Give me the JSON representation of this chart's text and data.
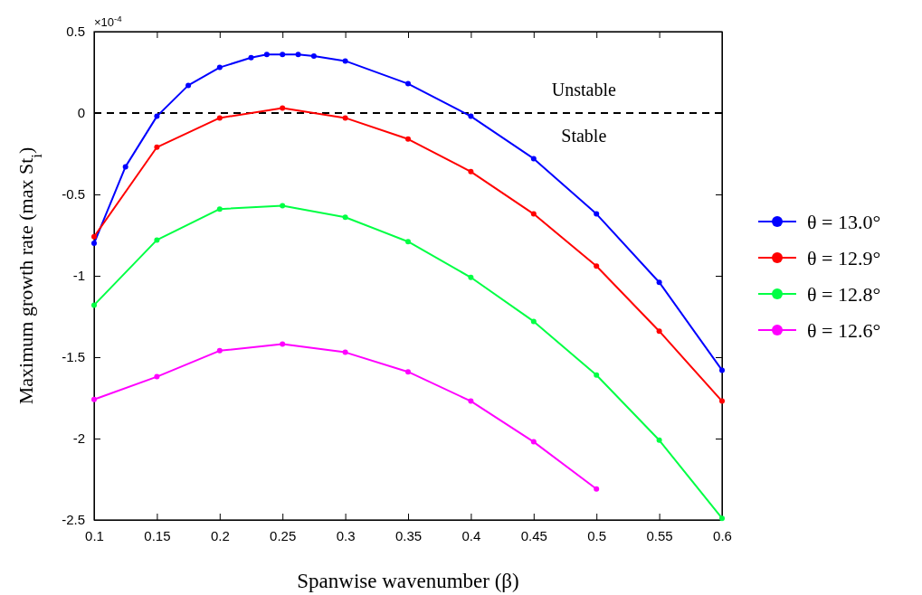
{
  "chart_data": {
    "type": "line",
    "xlabel": "Spanwise wavenumber (β)",
    "ylabel": "Maximum growth rate (max St$_{i}$)",
    "xlim": [
      0.1,
      0.6
    ],
    "xticks": [
      0.1,
      0.15,
      0.2,
      0.25,
      0.3,
      0.35,
      0.4,
      0.45,
      0.5,
      0.55,
      0.6
    ],
    "ylim": [
      -2.5,
      0.5
    ],
    "yticks": [
      -2.5,
      -2,
      -1.5,
      -1,
      -0.5,
      0,
      0.5
    ],
    "marker": "circle",
    "line_style": "solid",
    "legend": "right",
    "grid": false,
    "ref_lines": [
      {
        "axis": "y",
        "value": 0,
        "line_style": "dashed",
        "color": "#000000"
      }
    ],
    "annotations": [
      "×10$^{-4}$",
      "Unstable",
      "Stable"
    ],
    "series": [
      {
        "name": "θ = 13.0°",
        "color": "#0000ff",
        "x": [
          0.1,
          0.125,
          0.15,
          0.175,
          0.2,
          0.225,
          0.2375,
          0.25,
          0.2625,
          0.275,
          0.3,
          0.35,
          0.4,
          0.45,
          0.5,
          0.55,
          0.6
        ],
        "values": [
          -0.8,
          -0.33,
          -0.02,
          0.17,
          0.28,
          0.34,
          0.36,
          0.36,
          0.36,
          0.35,
          0.32,
          0.18,
          -0.02,
          -0.28,
          -0.62,
          -1.04,
          -1.58
        ]
      },
      {
        "name": "θ = 12.9°",
        "color": "#ff0000",
        "x": [
          0.1,
          0.15,
          0.2,
          0.25,
          0.3,
          0.35,
          0.4,
          0.45,
          0.5,
          0.55,
          0.6
        ],
        "values": [
          -0.76,
          -0.21,
          -0.03,
          0.03,
          -0.03,
          -0.16,
          -0.36,
          -0.62,
          -0.94,
          -1.34,
          -1.77
        ]
      },
      {
        "name": "θ = 12.8°",
        "color": "#00ff44",
        "x": [
          0.1,
          0.15,
          0.2,
          0.25,
          0.3,
          0.35,
          0.4,
          0.45,
          0.5,
          0.55,
          0.6
        ],
        "values": [
          -1.18,
          -0.78,
          -0.59,
          -0.57,
          -0.64,
          -0.79,
          -1.01,
          -1.28,
          -1.61,
          -2.01,
          -2.49
        ]
      },
      {
        "name": "θ = 12.6°",
        "color": "#ff00ff",
        "x": [
          0.1,
          0.15,
          0.2,
          0.25,
          0.3,
          0.35,
          0.4,
          0.45,
          0.5
        ],
        "values": [
          -1.76,
          -1.62,
          -1.46,
          -1.42,
          -1.47,
          -1.59,
          -1.77,
          -2.02,
          -2.31
        ]
      }
    ]
  }
}
